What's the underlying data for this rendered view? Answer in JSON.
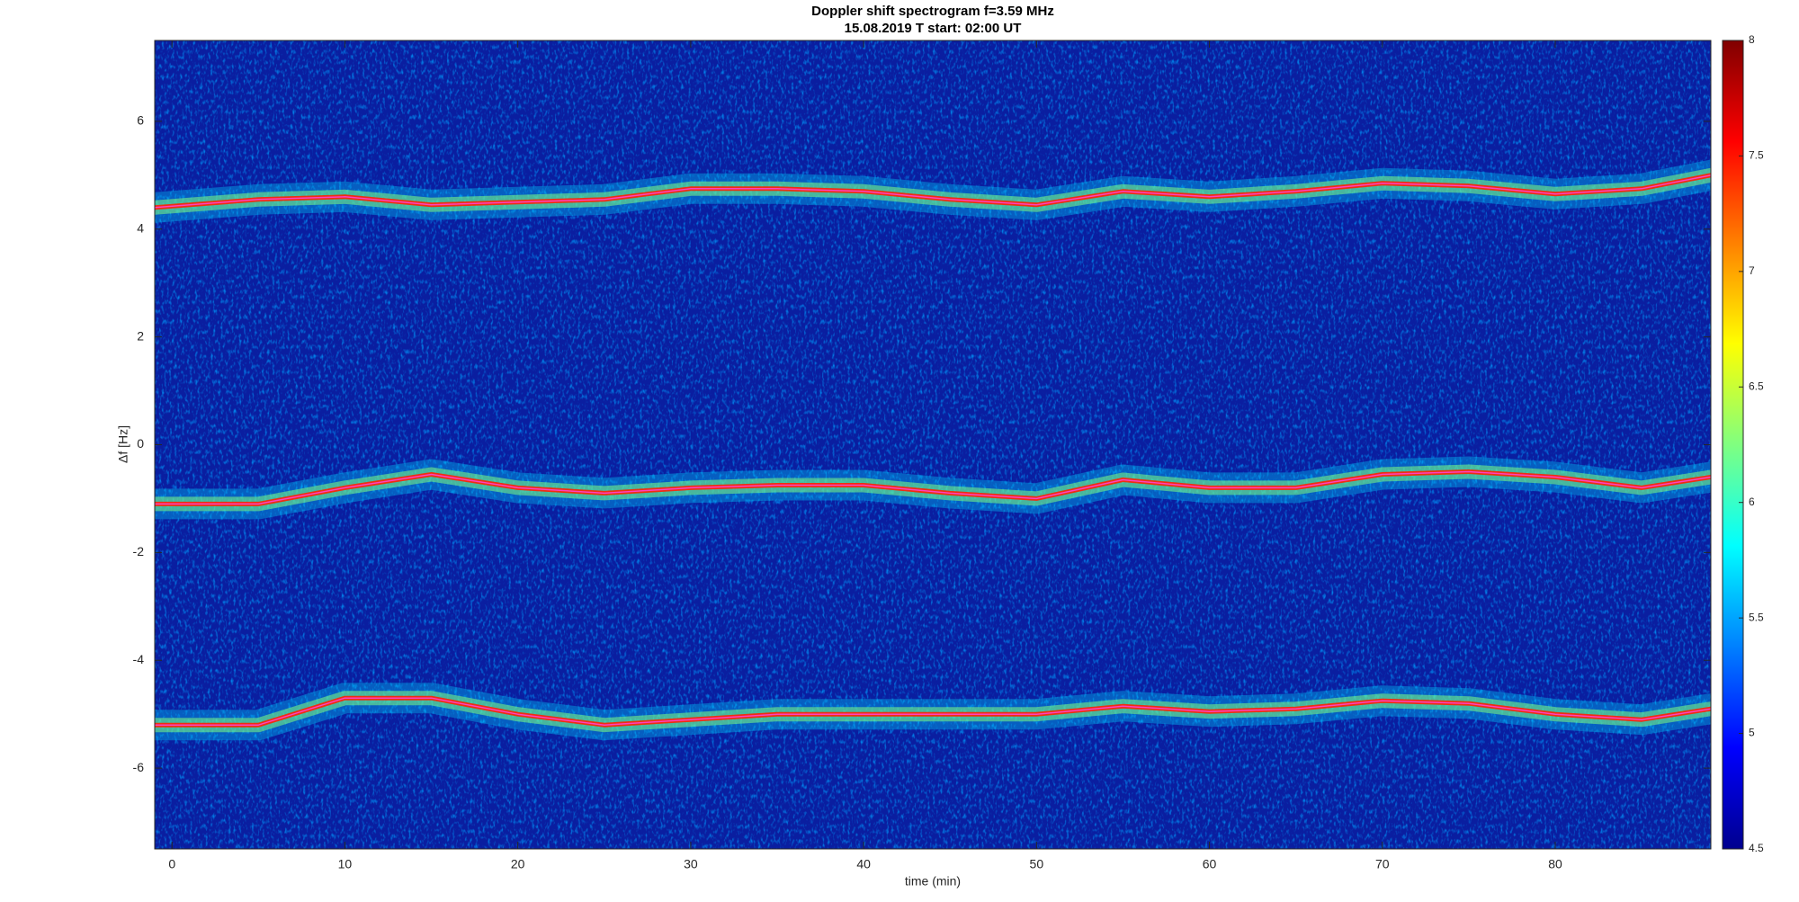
{
  "chart_data": {
    "type": "spectrogram",
    "title": "Doppler shift spectrogram f=3.59 MHz",
    "subtitle": "15.08.2019    T start: 02:00 UT",
    "xlabel": "time (min)",
    "ylabel": "Δf [Hz]",
    "xlim": [
      -1,
      89
    ],
    "xticks": [
      0,
      10,
      20,
      30,
      40,
      50,
      60,
      70,
      80
    ],
    "ylim": [
      -7.5,
      7.5
    ],
    "yticks": [
      -6,
      -4,
      -2,
      0,
      2,
      4,
      6
    ],
    "colormap": "jet",
    "clim": [
      4.5,
      8
    ],
    "cticks": [
      4.5,
      5,
      5.5,
      6,
      6.5,
      7,
      7.5,
      8
    ],
    "x": [
      -1,
      5,
      10,
      15,
      20,
      25,
      30,
      35,
      40,
      45,
      50,
      55,
      60,
      65,
      70,
      75,
      80,
      85,
      89
    ],
    "series": [
      {
        "color": "#ff40c0",
        "values": [
          4.4,
          4.55,
          4.6,
          4.45,
          4.5,
          4.55,
          4.75,
          4.75,
          4.7,
          4.55,
          4.45,
          4.7,
          4.6,
          4.7,
          4.85,
          4.8,
          4.65,
          4.75,
          5.0
        ]
      },
      {
        "color": "#ff40c0",
        "values": [
          -1.1,
          -1.1,
          -0.8,
          -0.55,
          -0.8,
          -0.9,
          -0.8,
          -0.75,
          -0.75,
          -0.9,
          -1.0,
          -0.65,
          -0.8,
          -0.8,
          -0.55,
          -0.5,
          -0.6,
          -0.8,
          -0.6
        ]
      },
      {
        "color": "#ff40c0",
        "values": [
          -5.2,
          -5.2,
          -4.7,
          -4.7,
          -5.0,
          -5.2,
          -5.1,
          -5.0,
          -5.0,
          -5.0,
          -5.0,
          -4.85,
          -4.95,
          -4.9,
          -4.75,
          -4.8,
          -5.0,
          -5.1,
          -4.9
        ]
      }
    ]
  }
}
